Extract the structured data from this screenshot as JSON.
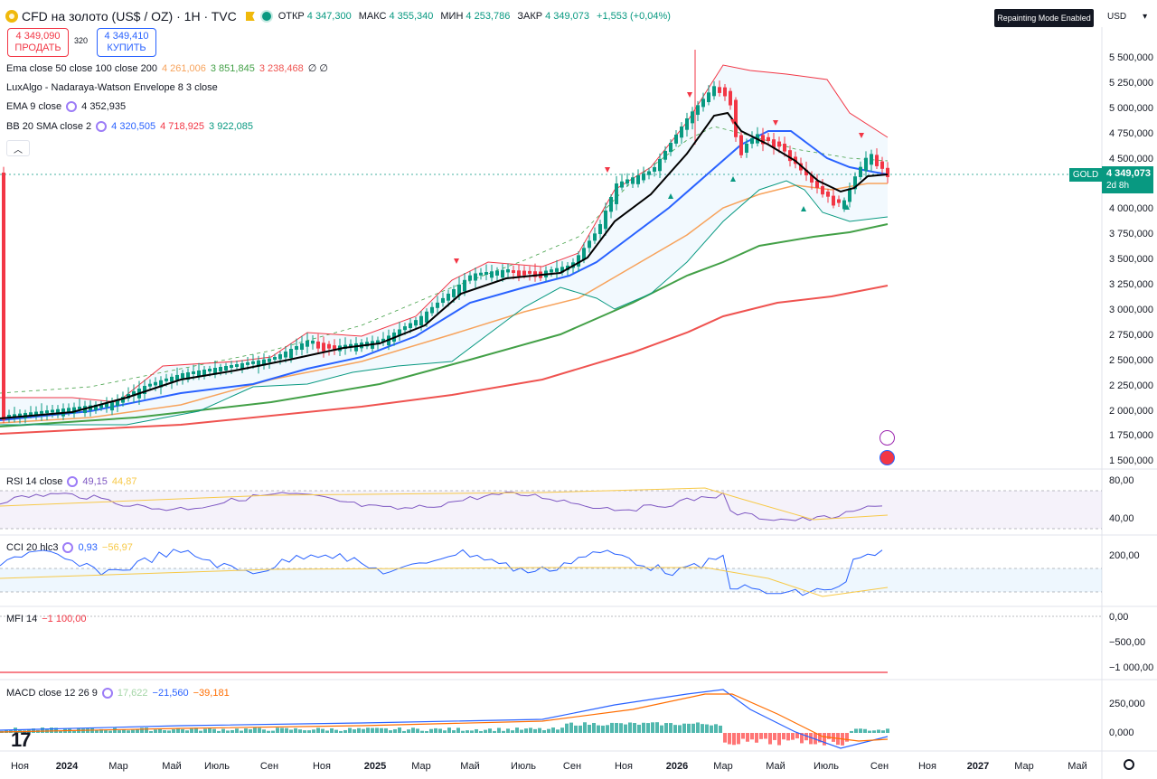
{
  "header": {
    "symbol": "CFD на золото (US$ / OZ) · 1H · TVC",
    "ohlc": [
      {
        "k": "ОТКР",
        "v": "4 347,300"
      },
      {
        "k": "МАКС",
        "v": "4 355,340"
      },
      {
        "k": "МИН",
        "v": "4 253,786"
      },
      {
        "k": "ЗАКР",
        "v": "4 349,073"
      }
    ],
    "change": "+1,553 (+0,04%)"
  },
  "trade": {
    "sell_price": "4 349,090",
    "sell_label": "ПРОДАТЬ",
    "spread": "320",
    "buy_price": "4 349,410",
    "buy_label": "КУПИТЬ"
  },
  "indicators": {
    "ema_label": "Ema close 50 close 100 close 200",
    "ema_v1": "4 261,006",
    "ema_v2": "3 851,845",
    "ema_v3": "3 238,468",
    "ema_tail": "∅ ∅",
    "lux_label": "LuxAlgo - Nadaraya-Watson Envelope 8 3 close",
    "ema9_label": "EMA 9 close",
    "ema9_v": "4 352,935",
    "bb_label": "BB 20 SMA close 2",
    "bb_v1": "4 320,505",
    "bb_v2": "4 718,925",
    "bb_v3": "3 922,085"
  },
  "top_right": {
    "repaint": "Repainting Mode Enabled",
    "currency": "USD",
    "currency_caret": "▾"
  },
  "price_axis": [
    "5 500,000",
    "5 250,000",
    "5 000,000",
    "4 750,000",
    "4 500,000",
    "4 000,000",
    "3 750,000",
    "3 500,000",
    "3 250,000",
    "3 000,000",
    "2 750,000",
    "2 500,000",
    "2 250,000",
    "2 000,000",
    "1 750,000",
    "1 500,000"
  ],
  "current": {
    "tag": "GOLD",
    "price": "4 349,073",
    "countdown": "2d 8h"
  },
  "rsi": {
    "label": "RSI 14 close",
    "v1": "49,15",
    "v2": "44,87",
    "axis": [
      "80,00",
      "40,00"
    ]
  },
  "cci": {
    "label": "CCI 20 hlc3",
    "v1": "0,93",
    "v2": "−56,97",
    "axis": [
      "200,00"
    ]
  },
  "mfi": {
    "label": "MFI 14",
    "v1": "−1 100,00",
    "axis": [
      "0,00",
      "−500,00",
      "−1 000,00"
    ]
  },
  "macd": {
    "label": "MACD close 12 26 9",
    "v1": "17,622",
    "v2": "−21,560",
    "v3": "−39,181",
    "axis": [
      "250,000",
      "0,000"
    ]
  },
  "time_axis": [
    "Ноя",
    "2024",
    "Мар",
    "Май",
    "Июль",
    "Сен",
    "Ноя",
    "2025",
    "Мар",
    "Май",
    "Июль",
    "Сен",
    "Ноя",
    "2026",
    "Мар",
    "Май",
    "Июль",
    "Сен",
    "Ноя",
    "2027",
    "Мар",
    "Май"
  ],
  "colors": {
    "up": "#089981",
    "down": "#f23645",
    "ema50": "#f7a35c",
    "ema100": "#43a047",
    "ema200": "#ef5350",
    "ema9": "#000000",
    "bb_basis": "#2962ff",
    "bb_upper": "#f23645",
    "bb_lower": "#089981"
  }
}
